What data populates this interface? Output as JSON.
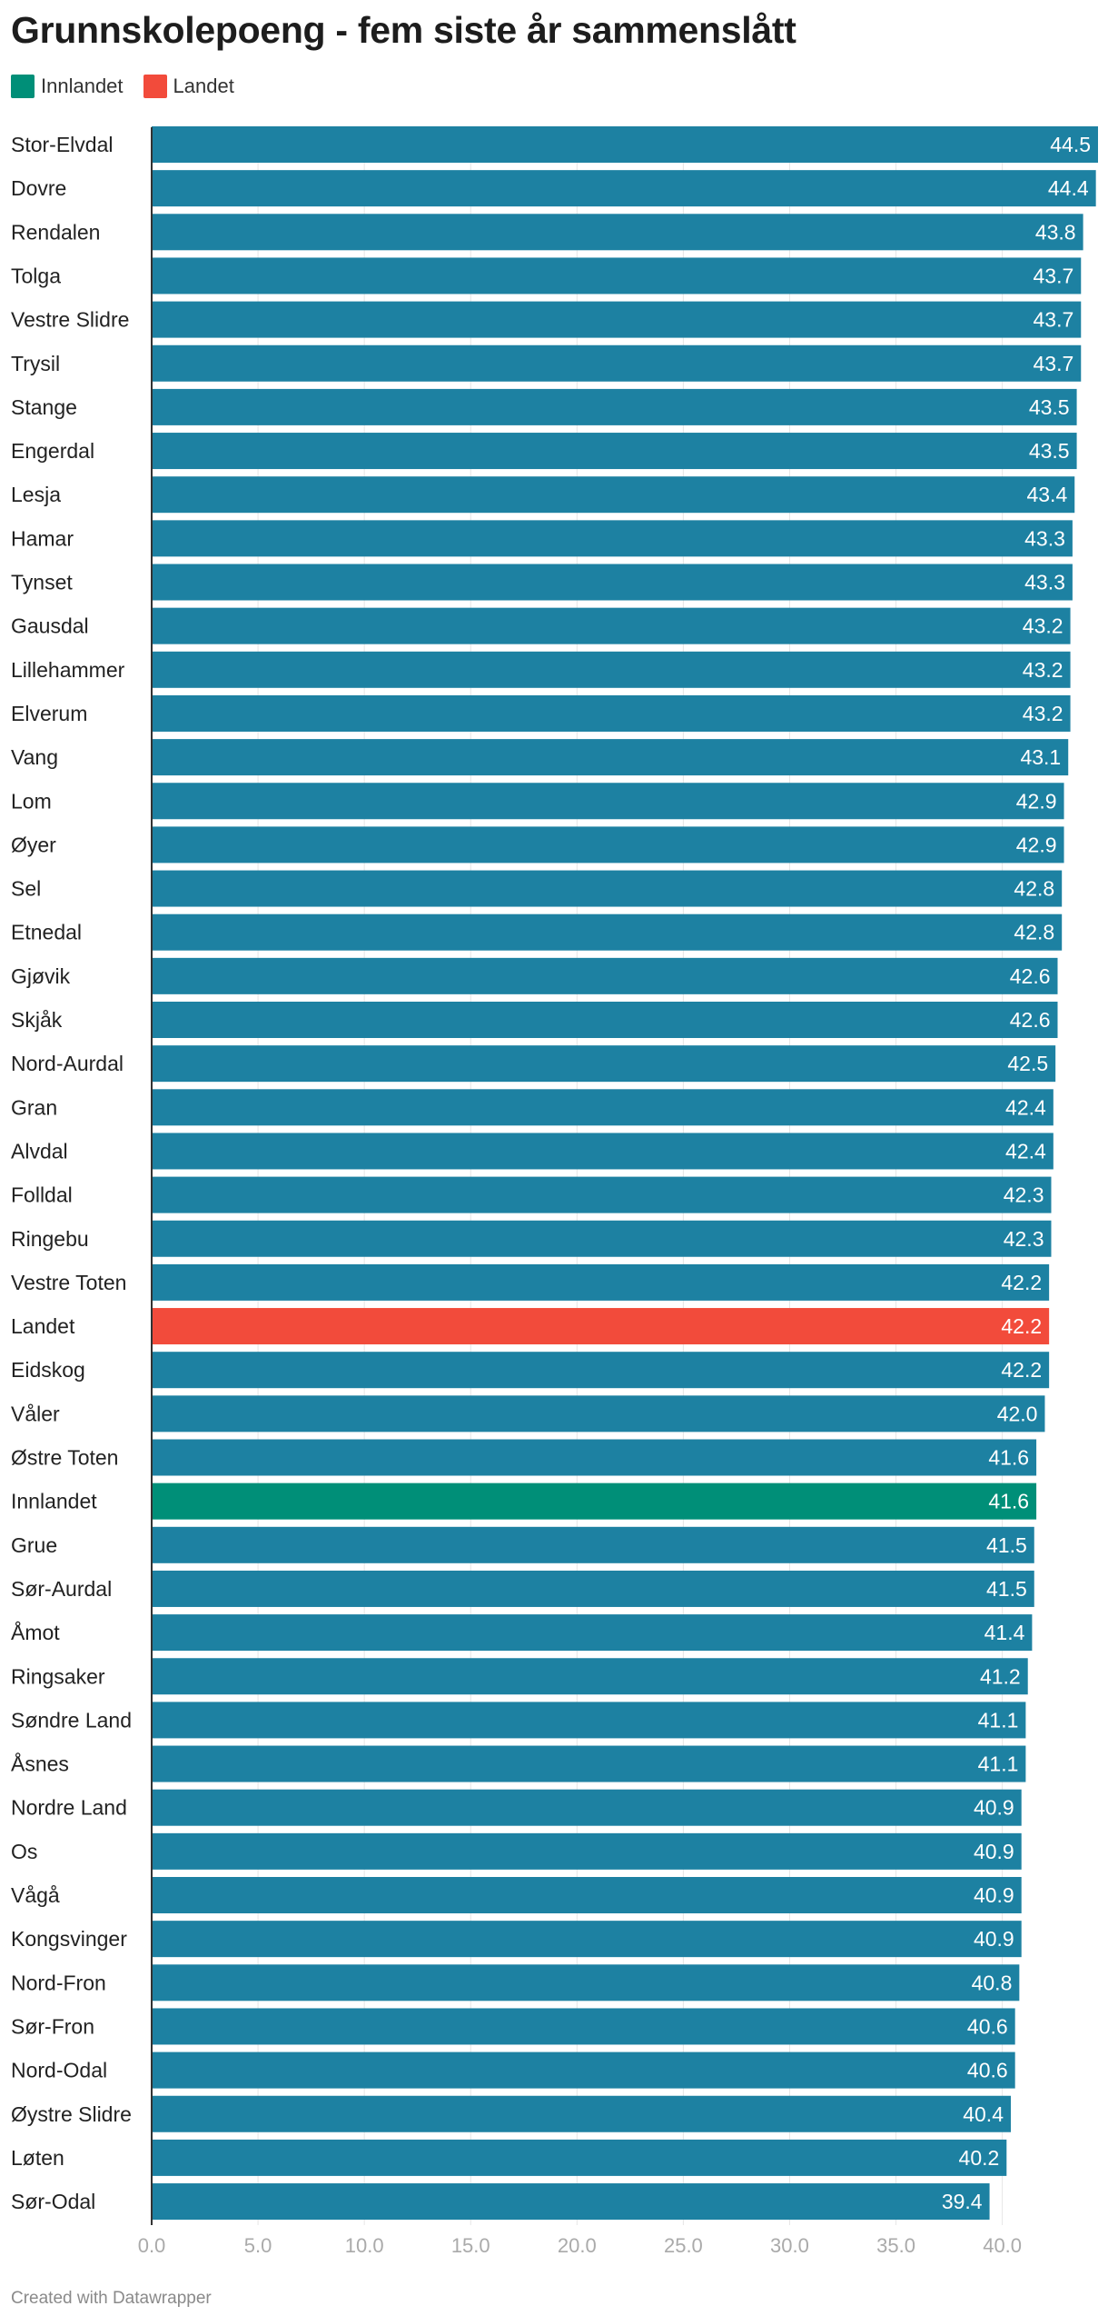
{
  "title": "Grunnskolepoeng - fem siste år sammenslått",
  "legend": [
    {
      "label": "Innlandet",
      "color": "#008f78"
    },
    {
      "label": "Landet",
      "color": "#f24b3b"
    }
  ],
  "footer": "Created with Datawrapper",
  "colors": {
    "default_bar": "#1d81a2",
    "innlandet": "#008f78",
    "landet": "#f24b3b",
    "value_text": "#ffffff",
    "tick_text": "#aaaaaa",
    "gridline": "#e6e6e6",
    "axis_line": "#333333"
  },
  "chart_data": {
    "type": "bar",
    "orientation": "horizontal",
    "categories": [
      "Stor-Elvdal",
      "Dovre",
      "Rendalen",
      "Tolga",
      "Vestre Slidre",
      "Trysil",
      "Stange",
      "Engerdal",
      "Lesja",
      "Hamar",
      "Tynset",
      "Gausdal",
      "Lillehammer",
      "Elverum",
      "Vang",
      "Lom",
      "Øyer",
      "Sel",
      "Etnedal",
      "Gjøvik",
      "Skjåk",
      "Nord-Aurdal",
      "Gran",
      "Alvdal",
      "Folldal",
      "Ringebu",
      "Vestre Toten",
      "Landet",
      "Eidskog",
      "Våler",
      "Østre Toten",
      "Innlandet",
      "Grue",
      "Sør-Aurdal",
      "Åmot",
      "Ringsaker",
      "Søndre Land",
      "Åsnes",
      "Nordre Land",
      "Os",
      "Vågå",
      "Kongsvinger",
      "Nord-Fron",
      "Sør-Fron",
      "Nord-Odal",
      "Øystre Slidre",
      "Løten",
      "Sør-Odal"
    ],
    "values": [
      44.5,
      44.4,
      43.8,
      43.7,
      43.7,
      43.7,
      43.5,
      43.5,
      43.4,
      43.3,
      43.3,
      43.2,
      43.2,
      43.2,
      43.1,
      42.9,
      42.9,
      42.8,
      42.8,
      42.6,
      42.6,
      42.5,
      42.4,
      42.4,
      42.3,
      42.3,
      42.2,
      42.2,
      42.2,
      42.0,
      41.6,
      41.6,
      41.5,
      41.5,
      41.4,
      41.2,
      41.1,
      41.1,
      40.9,
      40.9,
      40.9,
      40.9,
      40.8,
      40.6,
      40.6,
      40.4,
      40.2,
      39.4
    ],
    "value_labels": [
      "44.5",
      "44.4",
      "43.8",
      "43.7",
      "43.7",
      "43.7",
      "43.5",
      "43.5",
      "43.4",
      "43.3",
      "43.3",
      "43.2",
      "43.2",
      "43.2",
      "43.1",
      "42.9",
      "42.9",
      "42.8",
      "42.8",
      "42.6",
      "42.6",
      "42.5",
      "42.4",
      "42.4",
      "42.3",
      "42.3",
      "42.2",
      "42.2",
      "42.2",
      "42.0",
      "41.6",
      "41.6",
      "41.5",
      "41.5",
      "41.4",
      "41.2",
      "41.1",
      "41.1",
      "40.9",
      "40.9",
      "40.9",
      "40.9",
      "40.8",
      "40.6",
      "40.6",
      "40.4",
      "40.2",
      "39.4"
    ],
    "highlights": {
      "Landet": "landet",
      "Innlandet": "innlandet"
    },
    "xlim": [
      0,
      44.5
    ],
    "ticks": [
      0,
      5,
      10,
      15,
      20,
      25,
      30,
      35,
      40
    ],
    "tick_labels": [
      "0.0",
      "5.0",
      "10.0",
      "15.0",
      "20.0",
      "25.0",
      "30.0",
      "35.0",
      "40.0"
    ],
    "grid": true,
    "legend_position": "top-left"
  }
}
